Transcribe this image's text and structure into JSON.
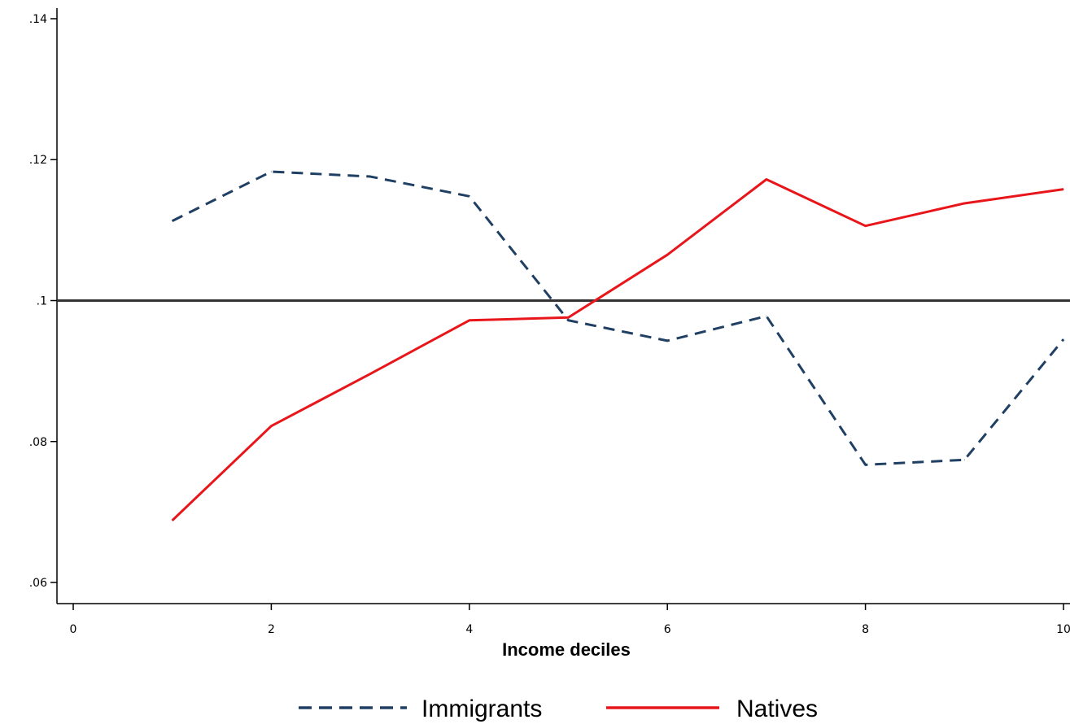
{
  "chart_data": {
    "type": "line",
    "title": "",
    "xlabel": "Income deciles",
    "ylabel": "",
    "xlim": [
      0,
      10
    ],
    "ylim": [
      0.057,
      0.1415
    ],
    "x_ticks": [
      0,
      2,
      4,
      6,
      8,
      10
    ],
    "x_tick_labels": [
      "0",
      "2",
      "4",
      "6",
      "8",
      "10"
    ],
    "y_ticks": [
      0.06,
      0.08,
      0.1,
      0.12,
      0.14
    ],
    "y_tick_labels": [
      ".06",
      ".08",
      ".1",
      ".12",
      ".14"
    ],
    "reference_line": {
      "y": 0.1,
      "color": "#333333"
    },
    "grid": false,
    "legend_position": "bottom",
    "x": [
      1,
      2,
      3,
      4,
      5,
      6,
      7,
      8,
      9,
      10
    ],
    "series": [
      {
        "name": "Immigrants",
        "style": "dashed",
        "color": "#1f3f63",
        "values": [
          0.1113,
          0.1183,
          0.1176,
          0.1148,
          0.0972,
          0.0943,
          0.0978,
          0.0767,
          0.0774,
          0.0945
        ]
      },
      {
        "name": "Natives",
        "style": "solid",
        "color": "#e8161a",
        "values": [
          0.0688,
          0.0822,
          0.0896,
          0.0972,
          0.0976,
          0.1065,
          0.1172,
          0.1106,
          0.1138,
          0.1158
        ]
      }
    ]
  }
}
